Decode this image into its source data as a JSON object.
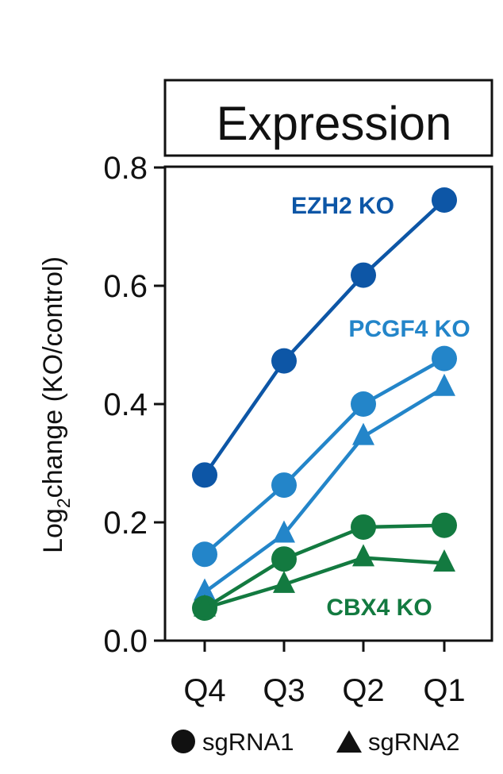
{
  "chart_data": {
    "type": "line",
    "title": "Expression",
    "ylabel_main": "Log",
    "ylabel_sub": "2",
    "ylabel_rest": "change (KO/control)",
    "categories": [
      "Q4",
      "Q3",
      "Q2",
      "Q1"
    ],
    "ylim": [
      0.0,
      0.8
    ],
    "yticks": [
      "0.0",
      "0.2",
      "0.4",
      "0.6",
      "0.8"
    ],
    "yticks_values": [
      0.0,
      0.2,
      0.4,
      0.6,
      0.8
    ],
    "grid": false,
    "legend": {
      "placement": "bottom",
      "entries": [
        {
          "marker": "circle",
          "label": "sgRNA1"
        },
        {
          "marker": "triangle",
          "label": "sgRNA2"
        }
      ]
    },
    "groups": [
      {
        "label": "EZH2 KO",
        "color": "#0d56a6"
      },
      {
        "label": "PCGF4 KO",
        "color": "#2385c9"
      },
      {
        "label": "CBX4 KO",
        "color": "#137a40"
      }
    ],
    "series": [
      {
        "group": 0,
        "marker": "circle",
        "values": [
          0.28,
          0.473,
          0.618,
          0.745
        ]
      },
      {
        "group": 1,
        "marker": "circle",
        "values": [
          0.146,
          0.263,
          0.4,
          0.477
        ]
      },
      {
        "group": 1,
        "marker": "triangle",
        "values": [
          0.082,
          0.18,
          0.345,
          0.428
        ]
      },
      {
        "group": 2,
        "marker": "circle",
        "values": [
          0.055,
          0.138,
          0.192,
          0.195
        ]
      },
      {
        "group": 2,
        "marker": "triangle",
        "values": [
          0.055,
          0.095,
          0.14,
          0.131
        ]
      }
    ]
  }
}
